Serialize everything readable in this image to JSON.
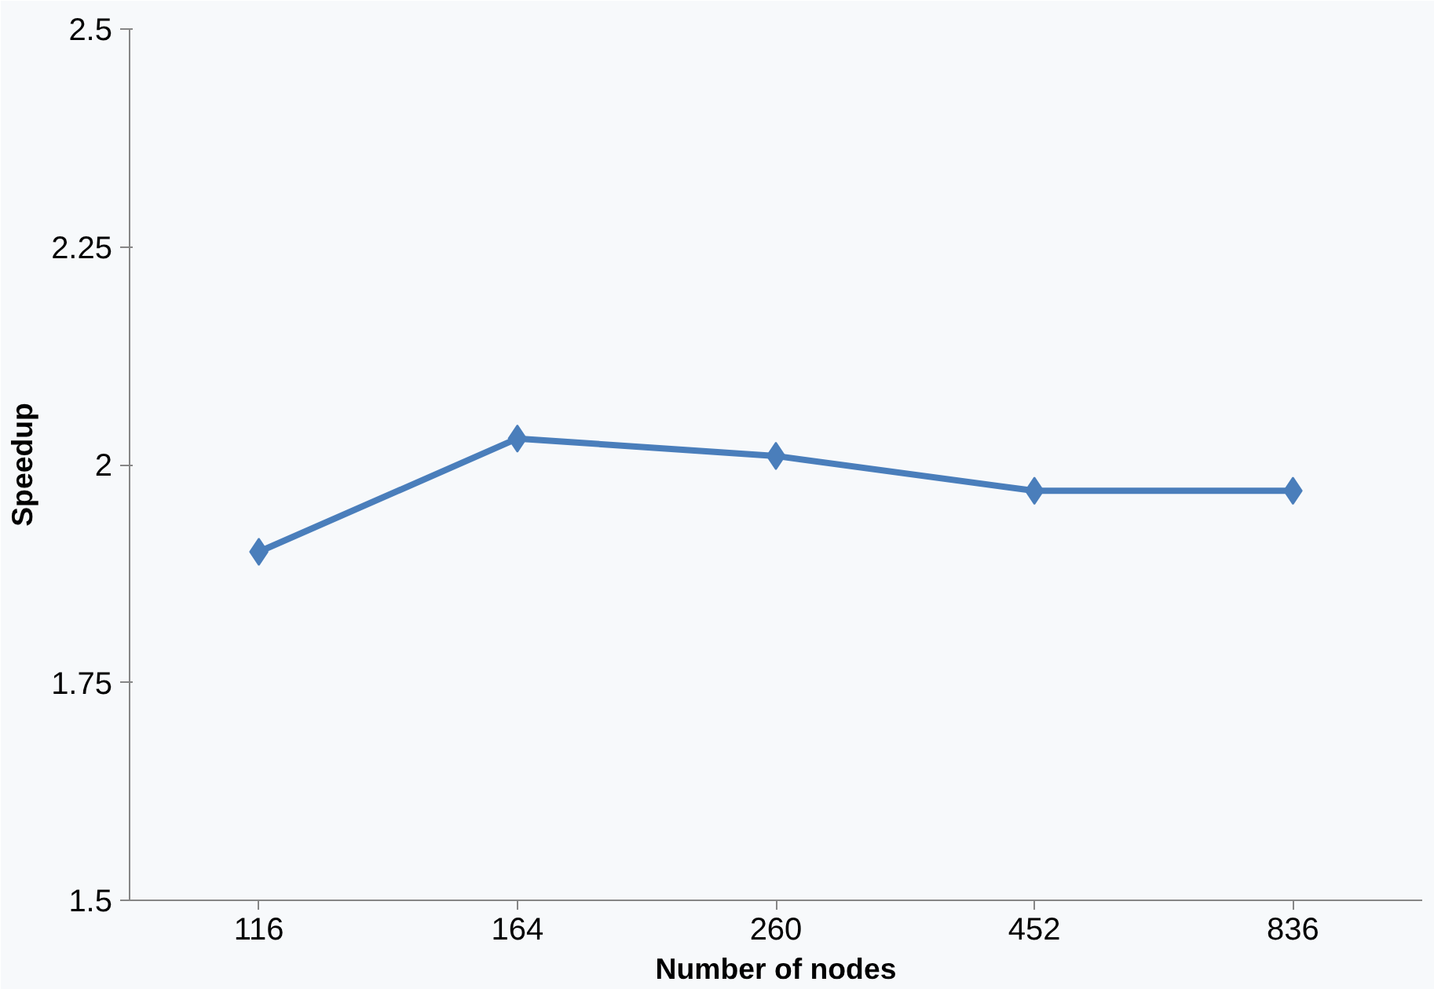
{
  "chart_data": {
    "type": "line",
    "xlabel": "Number of nodes",
    "ylabel": "Speedup",
    "categories": [
      "116",
      "164",
      "260",
      "452",
      "836"
    ],
    "series": [
      {
        "color": "#4a7ebb",
        "values": [
          1.9,
          2.03,
          2.01,
          1.97,
          1.97
        ]
      }
    ],
    "ylim": [
      1.5,
      2.5
    ],
    "yticks": [
      1.5,
      1.75,
      2,
      2.25,
      2.5
    ],
    "grid": false,
    "marker": "diamond",
    "line_style": "solid"
  }
}
